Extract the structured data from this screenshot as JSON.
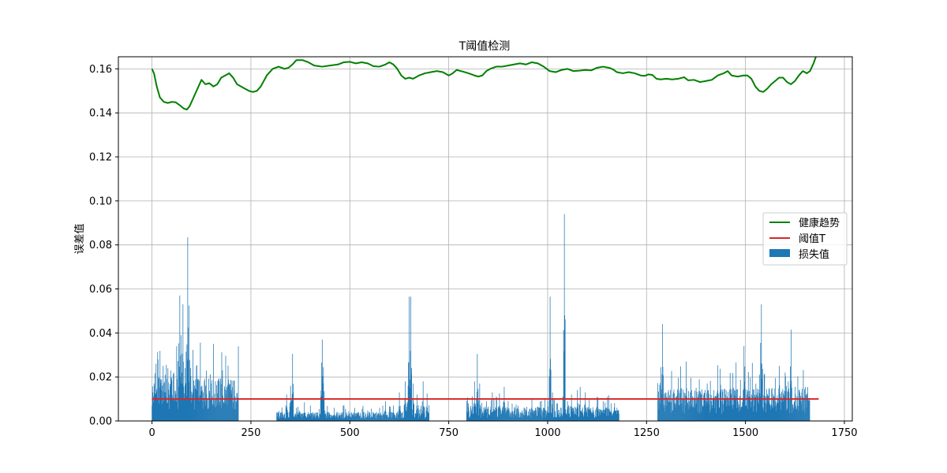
{
  "chart_data": {
    "type": "bar",
    "title": "T阈值检测",
    "xlabel": "",
    "ylabel": "误差值",
    "xlim": [
      -85,
      1770
    ],
    "ylim": [
      0.0,
      0.1655
    ],
    "xticks": [
      0,
      250,
      500,
      750,
      1000,
      1250,
      1500,
      1750
    ],
    "yticks": [
      0.0,
      0.02,
      0.04,
      0.06,
      0.08,
      0.1,
      0.12,
      0.14,
      0.16
    ],
    "ytick_labels": [
      "0.00",
      "0.02",
      "0.04",
      "0.06",
      "0.08",
      "0.10",
      "0.12",
      "0.14",
      "0.16"
    ],
    "grid": true,
    "legend_position": "center-right",
    "colors": {
      "trend": "#008000",
      "threshold": "#d62728",
      "bars": "#1f77b4"
    },
    "series": [
      {
        "name": "健康趋势",
        "kind": "line",
        "points": [
          [
            0,
            0.16
          ],
          [
            5,
            0.158
          ],
          [
            12,
            0.152
          ],
          [
            20,
            0.147
          ],
          [
            30,
            0.145
          ],
          [
            40,
            0.1445
          ],
          [
            50,
            0.145
          ],
          [
            60,
            0.1448
          ],
          [
            70,
            0.1435
          ],
          [
            80,
            0.142
          ],
          [
            88,
            0.1415
          ],
          [
            95,
            0.143
          ],
          [
            105,
            0.147
          ],
          [
            115,
            0.151
          ],
          [
            125,
            0.155
          ],
          [
            135,
            0.153
          ],
          [
            145,
            0.1535
          ],
          [
            155,
            0.152
          ],
          [
            165,
            0.153
          ],
          [
            175,
            0.156
          ],
          [
            185,
            0.157
          ],
          [
            195,
            0.158
          ],
          [
            205,
            0.156
          ],
          [
            215,
            0.153
          ],
          [
            225,
            0.152
          ],
          [
            235,
            0.151
          ],
          [
            245,
            0.15
          ],
          [
            255,
            0.1495
          ],
          [
            265,
            0.15
          ],
          [
            275,
            0.152
          ],
          [
            290,
            0.157
          ],
          [
            305,
            0.16
          ],
          [
            320,
            0.161
          ],
          [
            335,
            0.16
          ],
          [
            345,
            0.1605
          ],
          [
            355,
            0.162
          ],
          [
            365,
            0.164
          ],
          [
            380,
            0.164
          ],
          [
            395,
            0.163
          ],
          [
            410,
            0.1615
          ],
          [
            430,
            0.161
          ],
          [
            450,
            0.1615
          ],
          [
            470,
            0.162
          ],
          [
            485,
            0.163
          ],
          [
            500,
            0.1632
          ],
          [
            515,
            0.1625
          ],
          [
            530,
            0.163
          ],
          [
            545,
            0.1625
          ],
          [
            560,
            0.1612
          ],
          [
            575,
            0.161
          ],
          [
            590,
            0.162
          ],
          [
            600,
            0.163
          ],
          [
            610,
            0.162
          ],
          [
            620,
            0.16
          ],
          [
            630,
            0.157
          ],
          [
            640,
            0.1555
          ],
          [
            650,
            0.156
          ],
          [
            660,
            0.1555
          ],
          [
            675,
            0.157
          ],
          [
            690,
            0.158
          ],
          [
            705,
            0.1585
          ],
          [
            720,
            0.159
          ],
          [
            735,
            0.1585
          ],
          [
            750,
            0.157
          ],
          [
            760,
            0.158
          ],
          [
            770,
            0.1595
          ],
          [
            785,
            0.1588
          ],
          [
            800,
            0.158
          ],
          [
            815,
            0.157
          ],
          [
            825,
            0.1565
          ],
          [
            835,
            0.157
          ],
          [
            845,
            0.159
          ],
          [
            855,
            0.16
          ],
          [
            870,
            0.161
          ],
          [
            885,
            0.161
          ],
          [
            900,
            0.1615
          ],
          [
            915,
            0.162
          ],
          [
            930,
            0.1625
          ],
          [
            945,
            0.162
          ],
          [
            960,
            0.163
          ],
          [
            975,
            0.1625
          ],
          [
            990,
            0.161
          ],
          [
            1005,
            0.159
          ],
          [
            1020,
            0.1585
          ],
          [
            1035,
            0.1595
          ],
          [
            1050,
            0.16
          ],
          [
            1065,
            0.159
          ],
          [
            1080,
            0.1592
          ],
          [
            1095,
            0.1595
          ],
          [
            1110,
            0.1593
          ],
          [
            1125,
            0.1605
          ],
          [
            1140,
            0.161
          ],
          [
            1155,
            0.1605
          ],
          [
            1165,
            0.1598
          ],
          [
            1175,
            0.1585
          ],
          [
            1190,
            0.158
          ],
          [
            1205,
            0.1585
          ],
          [
            1220,
            0.158
          ],
          [
            1235,
            0.157
          ],
          [
            1245,
            0.1568
          ],
          [
            1255,
            0.1575
          ],
          [
            1265,
            0.1572
          ],
          [
            1275,
            0.1555
          ],
          [
            1285,
            0.1552
          ],
          [
            1300,
            0.1555
          ],
          [
            1315,
            0.1552
          ],
          [
            1330,
            0.1555
          ],
          [
            1345,
            0.1562
          ],
          [
            1355,
            0.1548
          ],
          [
            1370,
            0.155
          ],
          [
            1385,
            0.154
          ],
          [
            1400,
            0.1545
          ],
          [
            1415,
            0.155
          ],
          [
            1430,
            0.157
          ],
          [
            1445,
            0.158
          ],
          [
            1455,
            0.159
          ],
          [
            1465,
            0.157
          ],
          [
            1480,
            0.1565
          ],
          [
            1495,
            0.157
          ],
          [
            1505,
            0.157
          ],
          [
            1515,
            0.1555
          ],
          [
            1525,
            0.152
          ],
          [
            1535,
            0.15
          ],
          [
            1545,
            0.1495
          ],
          [
            1555,
            0.151
          ],
          [
            1565,
            0.153
          ],
          [
            1575,
            0.1545
          ],
          [
            1585,
            0.156
          ],
          [
            1595,
            0.156
          ],
          [
            1605,
            0.154
          ],
          [
            1615,
            0.153
          ],
          [
            1625,
            0.1545
          ],
          [
            1635,
            0.157
          ],
          [
            1645,
            0.159
          ],
          [
            1655,
            0.158
          ],
          [
            1663,
            0.159
          ],
          [
            1672,
            0.1625
          ],
          [
            1678,
            0.1655
          ]
        ]
      },
      {
        "name": "阈值T",
        "kind": "hline",
        "y": 0.01,
        "xrange": [
          0,
          1685
        ]
      },
      {
        "name": "损失值",
        "kind": "bars",
        "segments": [
          {
            "x0": 0,
            "x1": 218,
            "base": 0.012
          },
          {
            "x0": 315,
            "x1": 700,
            "base": 0.0025
          },
          {
            "x0": 795,
            "x1": 1180,
            "base": 0.004
          },
          {
            "x0": 1278,
            "x1": 1662,
            "base": 0.009
          }
        ],
        "peaks": [
          [
            10,
            0.026
          ],
          [
            15,
            0.028
          ],
          [
            22,
            0.019
          ],
          [
            28,
            0.025
          ],
          [
            33,
            0.021
          ],
          [
            40,
            0.024
          ],
          [
            47,
            0.023
          ],
          [
            55,
            0.022
          ],
          [
            63,
            0.017
          ],
          [
            70,
            0.057
          ],
          [
            73,
            0.039
          ],
          [
            78,
            0.053
          ],
          [
            83,
            0.024
          ],
          [
            86,
            0.0315
          ],
          [
            90,
            0.0835
          ],
          [
            93,
            0.0525
          ],
          [
            97,
            0.024
          ],
          [
            103,
            0.021
          ],
          [
            112,
            0.025
          ],
          [
            118,
            0.019
          ],
          [
            127,
            0.014
          ],
          [
            135,
            0.016
          ],
          [
            143,
            0.014
          ],
          [
            150,
            0.017
          ],
          [
            160,
            0.018
          ],
          [
            170,
            0.018
          ],
          [
            178,
            0.023
          ],
          [
            188,
            0.012
          ],
          [
            200,
            0.009
          ],
          [
            212,
            0.009
          ],
          [
            340,
            0.012
          ],
          [
            350,
            0.016
          ],
          [
            355,
            0.0305
          ],
          [
            365,
            0.006
          ],
          [
            385,
            0.0085
          ],
          [
            400,
            0.007
          ],
          [
            428,
            0.0265
          ],
          [
            430,
            0.037
          ],
          [
            433,
            0.0245
          ],
          [
            460,
            0.006
          ],
          [
            490,
            0.004
          ],
          [
            520,
            0.004
          ],
          [
            550,
            0.004
          ],
          [
            575,
            0.006
          ],
          [
            590,
            0.009
          ],
          [
            610,
            0.007
          ],
          [
            625,
            0.013
          ],
          [
            640,
            0.018
          ],
          [
            647,
            0.016
          ],
          [
            650,
            0.0565
          ],
          [
            654,
            0.0565
          ],
          [
            660,
            0.017
          ],
          [
            670,
            0.012
          ],
          [
            685,
            0.018
          ],
          [
            695,
            0.0125
          ],
          [
            815,
            0.018
          ],
          [
            822,
            0.0305
          ],
          [
            828,
            0.017
          ],
          [
            845,
            0.009
          ],
          [
            860,
            0.013
          ],
          [
            870,
            0.011
          ],
          [
            878,
            0.0125
          ],
          [
            890,
            0.0155
          ],
          [
            900,
            0.009
          ],
          [
            920,
            0.007
          ],
          [
            940,
            0.006
          ],
          [
            960,
            0.005
          ],
          [
            980,
            0.006
          ],
          [
            1000,
            0.009
          ],
          [
            1006,
            0.0565
          ],
          [
            1012,
            0.013
          ],
          [
            1025,
            0.008
          ],
          [
            1042,
            0.094
          ],
          [
            1050,
            0.009
          ],
          [
            1060,
            0.012
          ],
          [
            1075,
            0.014
          ],
          [
            1082,
            0.0155
          ],
          [
            1095,
            0.013
          ],
          [
            1105,
            0.01
          ],
          [
            1125,
            0.011
          ],
          [
            1140,
            0.009
          ],
          [
            1160,
            0.008
          ],
          [
            1175,
            0.006
          ],
          [
            1285,
            0.0175
          ],
          [
            1290,
            0.044
          ],
          [
            1297,
            0.013
          ],
          [
            1305,
            0.014
          ],
          [
            1320,
            0.0125
          ],
          [
            1335,
            0.0145
          ],
          [
            1350,
            0.027
          ],
          [
            1360,
            0.013
          ],
          [
            1375,
            0.015
          ],
          [
            1390,
            0.012
          ],
          [
            1405,
            0.014
          ],
          [
            1420,
            0.014
          ],
          [
            1435,
            0.013
          ],
          [
            1450,
            0.012
          ],
          [
            1465,
            0.0145
          ],
          [
            1480,
            0.0145
          ],
          [
            1496,
            0.034
          ],
          [
            1500,
            0.0145
          ],
          [
            1515,
            0.012
          ],
          [
            1525,
            0.011
          ],
          [
            1535,
            0.021
          ],
          [
            1538,
            0.0355
          ],
          [
            1540,
            0.053
          ],
          [
            1548,
            0.0215
          ],
          [
            1560,
            0.015
          ],
          [
            1575,
            0.014
          ],
          [
            1585,
            0.025
          ],
          [
            1600,
            0.022
          ],
          [
            1610,
            0.013
          ],
          [
            1615,
            0.0415
          ],
          [
            1625,
            0.0155
          ],
          [
            1635,
            0.014
          ],
          [
            1645,
            0.011
          ],
          [
            1655,
            0.012
          ]
        ]
      }
    ]
  }
}
